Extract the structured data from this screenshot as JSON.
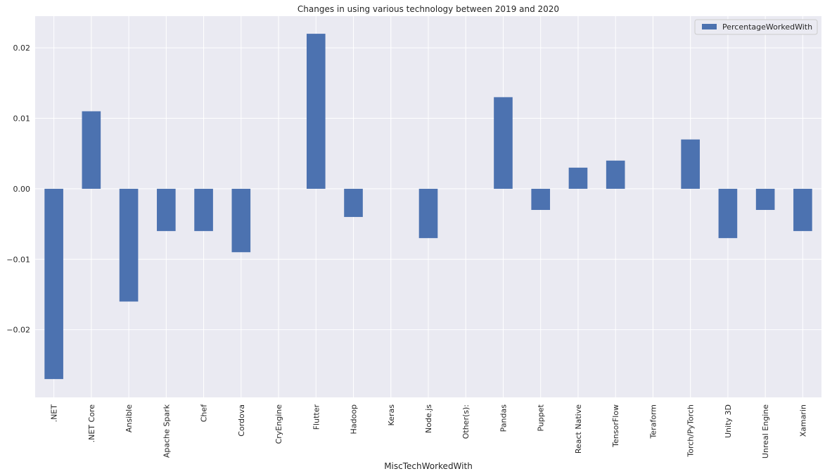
{
  "chart_data": {
    "type": "bar",
    "title": "Changes in using various technology between 2019 and 2020",
    "xlabel": "MiscTechWorkedWith",
    "ylabel": "",
    "categories": [
      ".NET",
      ".NET Core",
      "Ansible",
      "Apache Spark",
      "Chef",
      "Cordova",
      "CryEngine",
      "Flutter",
      "Hadoop",
      "Keras",
      "Node.js",
      "Other(s):",
      "Pandas",
      "Puppet",
      "React Native",
      "TensorFlow",
      "Teraform",
      "Torch/PyTorch",
      "Unity 3D",
      "Unreal Engine",
      "Xamarin"
    ],
    "series": [
      {
        "name": "PercentageWorkedWith",
        "values": [
          -0.027,
          0.011,
          -0.016,
          -0.006,
          -0.006,
          -0.009,
          0.0,
          0.022,
          -0.004,
          0.0,
          -0.007,
          0.0,
          0.013,
          -0.003,
          0.003,
          0.004,
          0.0,
          0.007,
          -0.007,
          -0.003,
          -0.006
        ],
        "color": "#4c72b0"
      }
    ],
    "ylim": [
      -0.0296,
      0.0245
    ],
    "yticks": [
      0.02,
      0.01,
      0.0,
      -0.01,
      -0.02
    ],
    "ytick_labels": [
      "0.02",
      "0.01",
      "0.00",
      "−0.01",
      "−0.02"
    ],
    "grid": true,
    "legend": "top-right",
    "background": "#eaeaf2",
    "grid_color": "#ffffff"
  }
}
